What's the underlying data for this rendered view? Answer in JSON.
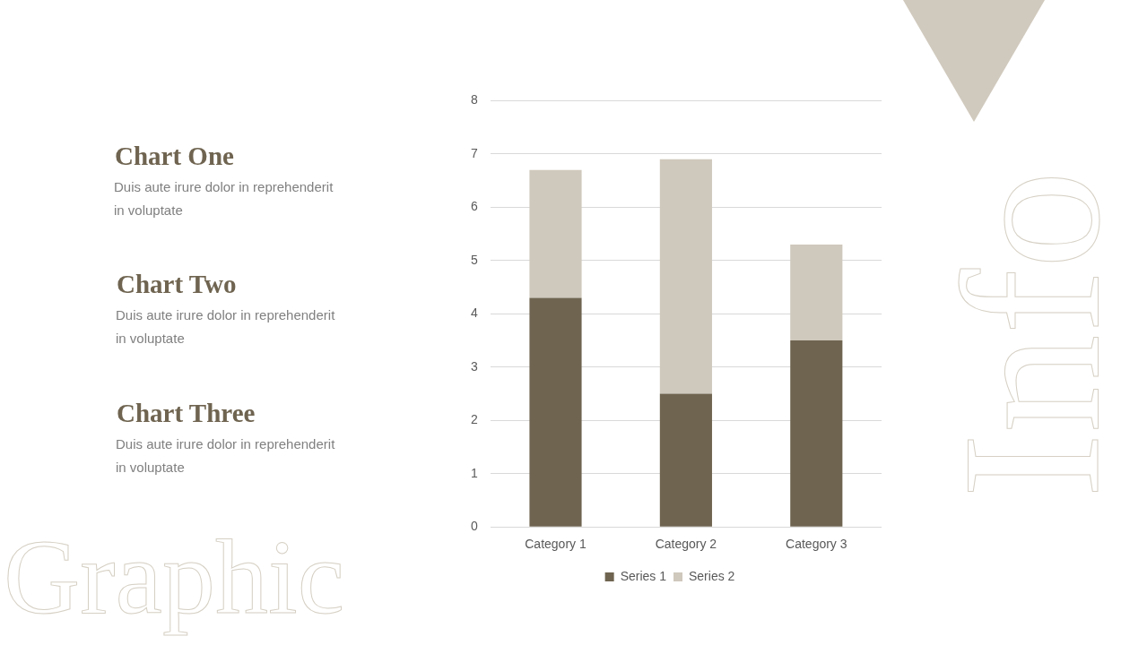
{
  "chart_data": {
    "type": "bar",
    "categories": [
      "Category 1",
      "Category 2",
      "Category 3"
    ],
    "series": [
      {
        "name": "Series 1",
        "color": "#6f6450",
        "values": [
          4.3,
          2.5,
          3.5
        ]
      },
      {
        "name": "Series 2",
        "color": "#cfc8bc",
        "values": [
          2.4,
          4.4,
          1.8
        ]
      }
    ],
    "stacked": true,
    "ylim": [
      0,
      8
    ],
    "yticks": [
      0,
      1,
      2,
      3,
      4,
      5,
      6,
      7,
      8
    ],
    "grid": "y",
    "legend": "bottom",
    "annotations": [
      "Chart One",
      "Duis aute irure dolor in reprehenderit in voluptate",
      "Chart Two",
      "Duis aute irure dolor in reprehenderit in voluptate",
      "Chart Three",
      "Duis aute irure dolor in reprehenderit in voluptate",
      "Graphic",
      "Info"
    ]
  }
}
